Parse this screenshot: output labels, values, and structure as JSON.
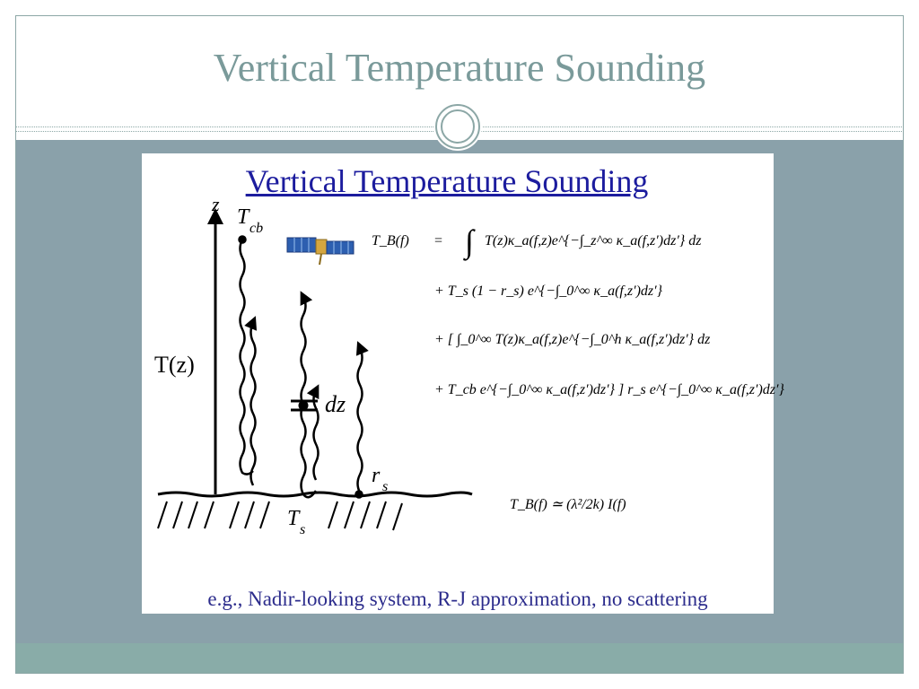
{
  "slide": {
    "title": "Vertical Temperature Sounding"
  },
  "figure": {
    "title": "Vertical Temperature Sounding",
    "caption": "e.g., Nadir-looking system, R-J approximation, no scattering",
    "labels": {
      "z_axis": "z",
      "t_cb": "T",
      "t_cb_sub": "cb",
      "t_z": "T(z)",
      "dz": "dz",
      "r_s": "r",
      "r_s_sub": "s",
      "t_s": "T",
      "t_s_sub": "s"
    },
    "equations": {
      "lhs": "T_B(f)",
      "eq": "=",
      "line1": "T(z)κ_a(f,z)e^{−∫_z^∞ κ_a(f,z′)dz′} dz",
      "line2": "+  T_s (1 − r_s) e^{−∫_0^∞ κ_a(f,z′)dz′}",
      "line3": "+  [ ∫_0^∞ T(z)κ_a(f,z)e^{−∫_0^h κ_a(f,z′)dz′} dz",
      "line4": "+  T_cb e^{−∫_0^∞ κ_a(f,z′)dz′} ] r_s e^{−∫_0^∞ κ_a(f,z′)dz′}",
      "rj": "T_B(f) ≃ (λ²/2k) I(f)"
    }
  },
  "colors": {
    "title": "#7a9a9a",
    "band": "#8aa1aa",
    "footer": "#89aca8",
    "figure_title": "#1c1c9e",
    "caption": "#2c2c8c"
  }
}
